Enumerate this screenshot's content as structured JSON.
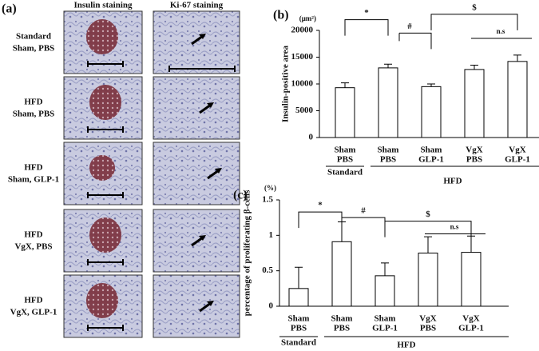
{
  "panel_a": {
    "label": "(a)",
    "columns": [
      "Insulin staining",
      "Ki-67 staining"
    ],
    "rows": [
      [
        "Standard",
        "Sham, PBS"
      ],
      [
        "HFD",
        "Sham, PBS"
      ],
      [
        "HFD",
        "Sham, GLP-1"
      ],
      [
        "HFD",
        "VgX, PBS"
      ],
      [
        "HFD",
        "VgX, GLP-1"
      ]
    ]
  },
  "chart_data": [
    {
      "type": "bar",
      "panel_label": "(b)",
      "unit": "(μm²)",
      "y_label": "Insulin-positive area",
      "categories": [
        [
          "Sham",
          "PBS"
        ],
        [
          "Sham",
          "PBS"
        ],
        [
          "Sham",
          "GLP-1"
        ],
        [
          "VgX",
          "PBS"
        ],
        [
          "VgX",
          "GLP-1"
        ]
      ],
      "groups": [
        "Standard",
        "HFD"
      ],
      "values": [
        9300,
        13000,
        9500,
        12700,
        14200
      ],
      "errors": [
        900,
        700,
        500,
        800,
        1200
      ],
      "color": "#ffffff",
      "ylim": [
        0,
        20000
      ],
      "yticks": [
        0,
        5000,
        10000,
        15000,
        20000
      ],
      "annotations": [
        "*",
        "#",
        "$",
        "n.s"
      ]
    },
    {
      "type": "bar",
      "panel_label": "(c)",
      "unit": "(%)",
      "y_label": "percentage of proliferating β-cells",
      "categories": [
        [
          "Sham",
          "PBS"
        ],
        [
          "Sham",
          "PBS"
        ],
        [
          "Sham",
          "GLP-1"
        ],
        [
          "VgX",
          "PBS"
        ],
        [
          "VgX",
          "GLP-1"
        ]
      ],
      "groups": [
        "Standard",
        "HFD"
      ],
      "values": [
        0.25,
        0.91,
        0.43,
        0.75,
        0.76
      ],
      "errors": [
        0.3,
        0.28,
        0.18,
        0.23,
        0.23
      ],
      "color": "#ffffff",
      "ylim": [
        0,
        1.5
      ],
      "yticks": [
        0,
        0.5,
        1,
        1.5
      ],
      "annotations": [
        "*",
        "#",
        "$",
        "n.s"
      ]
    }
  ]
}
